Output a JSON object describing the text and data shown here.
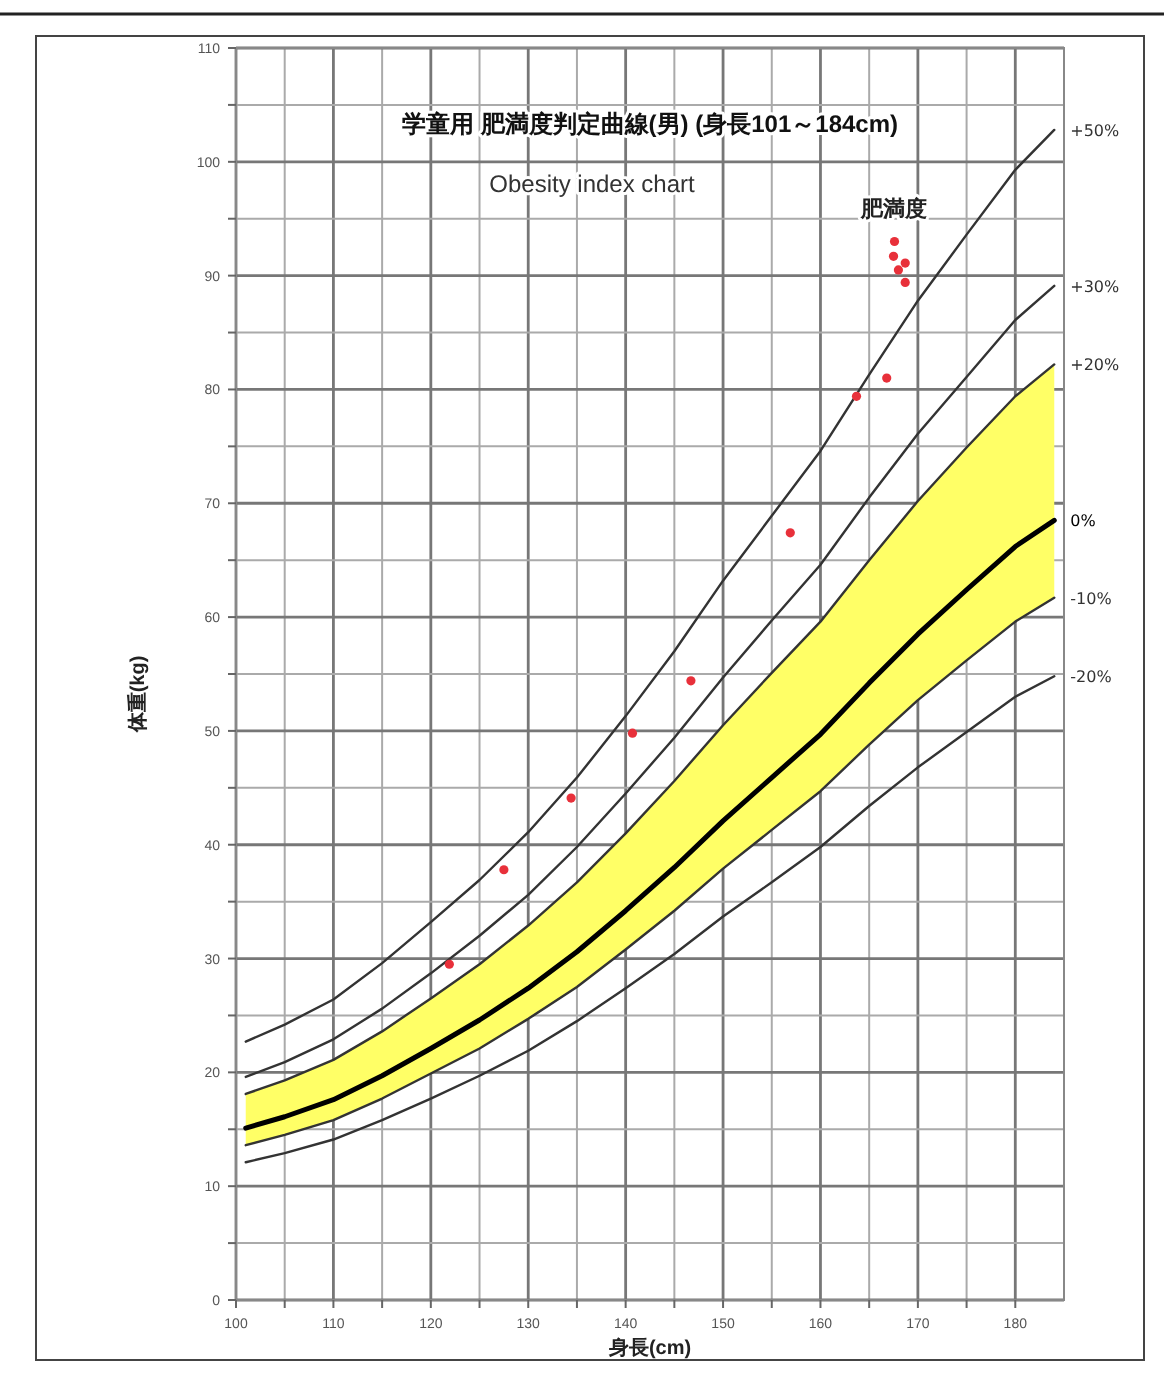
{
  "chart_data": {
    "type": "line",
    "title": "学童用 肥満度判定曲線(男) (身長101～184cm)",
    "subtitle": "Obesity index chart",
    "xlabel": "身長(cm)",
    "ylabel": "体重(kg)",
    "annotations": [
      "肥満度"
    ],
    "x": [
      101,
      105,
      110,
      115,
      120,
      125,
      130,
      135,
      140,
      145,
      150,
      155,
      160,
      165,
      170,
      175,
      180,
      184
    ],
    "series": [
      {
        "name": "+50%",
        "color": "#333333",
        "values": [
          22.7,
          24.2,
          26.4,
          29.6,
          33.2,
          36.9,
          41.1,
          45.9,
          51.3,
          57.0,
          63.2,
          68.9,
          74.6,
          81.3,
          87.8,
          93.6,
          99.3,
          102.8
        ]
      },
      {
        "name": "+30%",
        "color": "#333333",
        "values": [
          19.6,
          20.9,
          22.9,
          25.6,
          28.7,
          32.0,
          35.6,
          39.8,
          44.5,
          49.4,
          54.7,
          59.7,
          64.6,
          70.5,
          76.1,
          81.1,
          86.1,
          89.1
        ]
      },
      {
        "name": "+20%",
        "color": "#333333",
        "values": [
          18.1,
          19.3,
          21.1,
          23.6,
          26.5,
          29.5,
          32.9,
          36.7,
          41.0,
          45.6,
          50.5,
          55.1,
          59.6,
          65.0,
          70.2,
          74.9,
          79.4,
          82.2
        ]
      },
      {
        "name": "0%",
        "color": "#000000",
        "values": [
          15.1,
          16.1,
          17.6,
          19.7,
          22.1,
          24.6,
          27.4,
          30.6,
          34.2,
          38.0,
          42.1,
          45.9,
          49.7,
          54.2,
          58.5,
          62.4,
          66.2,
          68.5
        ],
        "lower": [
          13.6,
          14.5,
          15.8,
          17.7,
          19.9,
          22.1,
          24.7,
          27.5,
          30.8,
          34.2,
          37.9,
          41.3,
          44.7,
          48.8,
          52.7,
          56.2,
          59.6,
          61.7
        ],
        "upper": [
          18.1,
          19.3,
          21.1,
          23.6,
          26.5,
          29.5,
          32.9,
          36.7,
          41.0,
          45.6,
          50.5,
          55.1,
          59.6,
          65.0,
          70.2,
          74.9,
          79.4,
          82.2
        ]
      },
      {
        "name": "-10%",
        "color": "#333333",
        "values": [
          13.6,
          14.5,
          15.8,
          17.7,
          19.9,
          22.1,
          24.7,
          27.5,
          30.8,
          34.2,
          37.9,
          41.3,
          44.7,
          48.8,
          52.7,
          56.2,
          59.6,
          61.7
        ]
      },
      {
        "name": "-20%",
        "color": "#333333",
        "values": [
          12.1,
          12.9,
          14.1,
          15.8,
          17.7,
          19.7,
          21.9,
          24.5,
          27.4,
          30.4,
          33.7,
          36.7,
          39.8,
          43.4,
          46.8,
          49.9,
          53.0,
          54.8
        ]
      },
      {
        "type": "scatter",
        "marker": "circle",
        "color": "#e8303a",
        "x": [
          121.9,
          127.5,
          134.4,
          140.7,
          146.7,
          156.9,
          163.7,
          166.8,
          167.6,
          167.5,
          168.7,
          168.0,
          168.7
        ],
        "values": [
          29.5,
          37.8,
          44.1,
          49.8,
          54.4,
          67.4,
          79.4,
          81.0,
          93.0,
          91.7,
          91.1,
          90.5,
          89.4
        ]
      }
    ],
    "xlim": [
      100,
      185
    ],
    "xticks": [
      100,
      {
        "value": 105,
        "label": null
      },
      110,
      {
        "value": 115,
        "label": null
      },
      120,
      {
        "value": 125,
        "label": null
      },
      130,
      {
        "value": 135,
        "label": null
      },
      140,
      {
        "value": 145,
        "label": null
      },
      150,
      {
        "value": 155,
        "label": null
      },
      160,
      {
        "value": 165,
        "label": null
      },
      170,
      {
        "value": 175,
        "label": null
      },
      180
    ],
    "ylim": [
      0,
      110
    ],
    "yticks": [
      0,
      {
        "value": 5,
        "label": null
      },
      10,
      {
        "value": 15,
        "label": null
      },
      20,
      {
        "value": 25,
        "label": null
      },
      30,
      {
        "value": 35,
        "label": null
      },
      40,
      {
        "value": 45,
        "label": null
      },
      50,
      {
        "value": 55,
        "label": null
      },
      60,
      {
        "value": 65,
        "label": null
      },
      70,
      {
        "value": 75,
        "label": null
      },
      80,
      {
        "value": 85,
        "label": null
      },
      90,
      {
        "value": 95,
        "label": null
      },
      100,
      {
        "value": 105,
        "label": null
      },
      110
    ],
    "grid": true,
    "line_style": "solid"
  }
}
